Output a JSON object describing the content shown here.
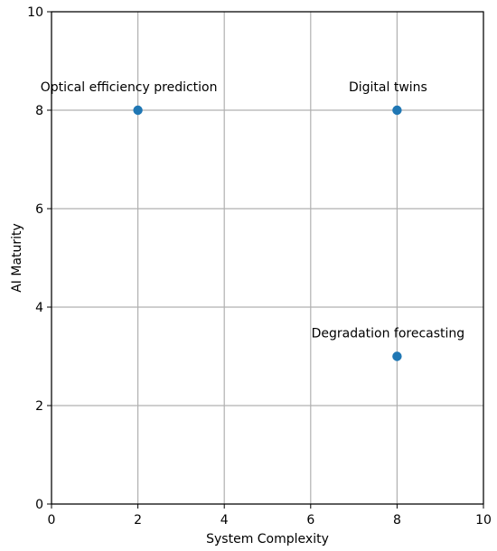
{
  "chart_data": {
    "type": "scatter",
    "xlabel": "System Complexity",
    "ylabel": "AI Maturity",
    "xlim": [
      0,
      10
    ],
    "ylim": [
      0,
      10
    ],
    "xticks": [
      0,
      2,
      4,
      6,
      8,
      10
    ],
    "yticks": [
      0,
      2,
      4,
      6,
      8,
      10
    ],
    "grid": true,
    "marker_color": "#1f77b4",
    "points": [
      {
        "label": "Optical efficiency prediction",
        "x": 2,
        "y": 8
      },
      {
        "label": "Digital twins",
        "x": 8,
        "y": 8
      },
      {
        "label": "Degradation forecasting",
        "x": 8,
        "y": 3
      }
    ]
  }
}
